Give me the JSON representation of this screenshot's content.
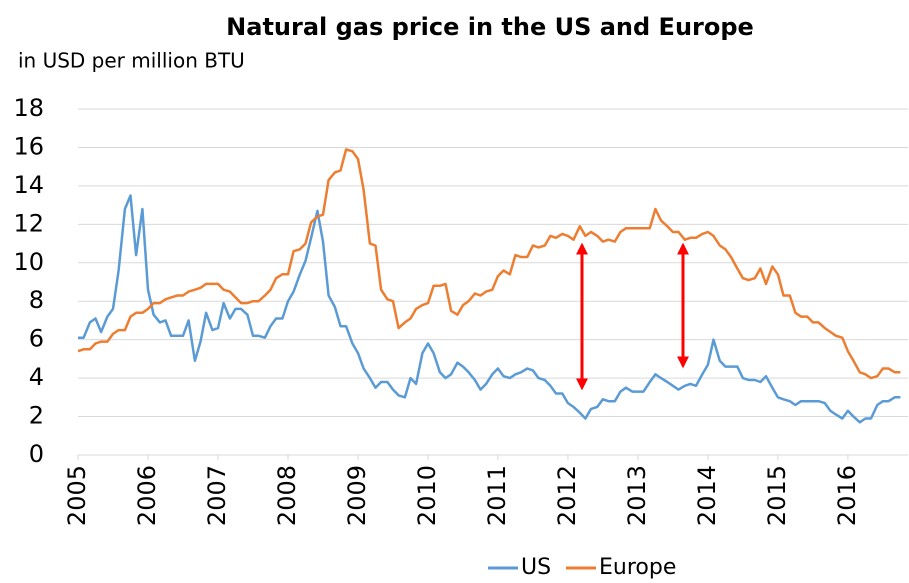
{
  "chart_data": {
    "type": "line",
    "title": "Natural gas price in the US and Europe",
    "subtitle": "in USD per million BTU",
    "x": [
      2005,
      2005.08,
      2005.17,
      2005.25,
      2005.33,
      2005.42,
      2005.5,
      2005.58,
      2005.67,
      2005.75,
      2005.83,
      2005.92,
      2006,
      2006.08,
      2006.17,
      2006.25,
      2006.33,
      2006.42,
      2006.5,
      2006.58,
      2006.67,
      2006.75,
      2006.83,
      2006.92,
      2007,
      2007.08,
      2007.17,
      2007.25,
      2007.33,
      2007.42,
      2007.5,
      2007.58,
      2007.67,
      2007.75,
      2007.83,
      2007.92,
      2008,
      2008.08,
      2008.17,
      2008.25,
      2008.33,
      2008.42,
      2008.5,
      2008.58,
      2008.67,
      2008.75,
      2008.83,
      2008.92,
      2009,
      2009.08,
      2009.17,
      2009.25,
      2009.33,
      2009.42,
      2009.5,
      2009.58,
      2009.67,
      2009.75,
      2009.83,
      2009.92,
      2010,
      2010.08,
      2010.17,
      2010.25,
      2010.33,
      2010.42,
      2010.5,
      2010.58,
      2010.67,
      2010.75,
      2010.83,
      2010.92,
      2011,
      2011.08,
      2011.17,
      2011.25,
      2011.33,
      2011.42,
      2011.5,
      2011.58,
      2011.67,
      2011.75,
      2011.83,
      2011.92,
      2012,
      2012.08,
      2012.17,
      2012.25,
      2012.33,
      2012.42,
      2012.5,
      2012.58,
      2012.67,
      2012.75,
      2012.83,
      2012.92,
      2013,
      2013.08,
      2013.17,
      2013.25,
      2013.33,
      2013.42,
      2013.5,
      2013.58,
      2013.67,
      2013.75,
      2013.83,
      2013.92,
      2014,
      2014.08,
      2014.17,
      2014.25,
      2014.33,
      2014.42,
      2014.5,
      2014.58,
      2014.67,
      2014.75,
      2014.83,
      2014.92,
      2015,
      2015.08,
      2015.17,
      2015.25,
      2015.33,
      2015.42,
      2015.5,
      2015.58,
      2015.67,
      2015.75,
      2015.83,
      2015.92,
      2016,
      2016.08,
      2016.17,
      2016.25,
      2016.33,
      2016.42,
      2016.5,
      2016.58,
      2016.67,
      2016.75
    ],
    "series": [
      {
        "name": "US",
        "color": "#5b9bd5",
        "values": [
          6.1,
          6.1,
          6.9,
          7.1,
          6.4,
          7.2,
          7.6,
          9.6,
          12.8,
          13.5,
          10.4,
          12.8,
          8.6,
          7.3,
          6.9,
          7.0,
          6.2,
          6.2,
          6.2,
          7.0,
          4.9,
          5.9,
          7.4,
          6.5,
          6.6,
          7.9,
          7.1,
          7.6,
          7.6,
          7.3,
          6.2,
          6.2,
          6.1,
          6.7,
          7.1,
          7.1,
          8.0,
          8.5,
          9.4,
          10.1,
          11.3,
          12.7,
          11.1,
          8.3,
          7.7,
          6.7,
          6.7,
          5.8,
          5.3,
          4.5,
          4.0,
          3.5,
          3.8,
          3.8,
          3.4,
          3.1,
          3.0,
          4.0,
          3.7,
          5.3,
          5.8,
          5.3,
          4.3,
          4.0,
          4.2,
          4.8,
          4.6,
          4.3,
          3.9,
          3.4,
          3.7,
          4.2,
          4.5,
          4.1,
          4.0,
          4.2,
          4.3,
          4.5,
          4.4,
          4.0,
          3.9,
          3.6,
          3.2,
          3.2,
          2.7,
          2.5,
          2.2,
          1.9,
          2.4,
          2.5,
          2.9,
          2.8,
          2.8,
          3.3,
          3.5,
          3.3,
          3.3,
          3.3,
          3.8,
          4.2,
          4.0,
          3.8,
          3.6,
          3.4,
          3.6,
          3.7,
          3.6,
          4.2,
          4.7,
          6.0,
          4.9,
          4.6,
          4.6,
          4.6,
          4.0,
          3.9,
          3.9,
          3.8,
          4.1,
          3.5,
          3.0,
          2.9,
          2.8,
          2.6,
          2.8,
          2.8,
          2.8,
          2.8,
          2.7,
          2.3,
          2.1,
          1.9,
          2.3,
          2.0,
          1.7,
          1.9,
          1.9,
          2.6,
          2.8,
          2.8,
          3.0,
          3.0
        ]
      },
      {
        "name": "Europe",
        "color": "#ed7d31",
        "values": [
          5.4,
          5.5,
          5.5,
          5.8,
          5.9,
          5.9,
          6.3,
          6.5,
          6.5,
          7.2,
          7.4,
          7.4,
          7.6,
          7.9,
          7.9,
          8.1,
          8.2,
          8.3,
          8.3,
          8.5,
          8.6,
          8.7,
          8.9,
          8.9,
          8.9,
          8.6,
          8.5,
          8.2,
          7.9,
          7.9,
          8.0,
          8.0,
          8.3,
          8.6,
          9.2,
          9.4,
          9.4,
          10.6,
          10.7,
          11.0,
          12.1,
          12.4,
          12.5,
          14.3,
          14.7,
          14.8,
          15.9,
          15.8,
          15.4,
          13.8,
          11.0,
          10.9,
          8.6,
          8.1,
          8.0,
          6.6,
          6.9,
          7.1,
          7.6,
          7.8,
          7.9,
          8.8,
          8.8,
          8.9,
          7.5,
          7.3,
          7.8,
          8.0,
          8.4,
          8.3,
          8.5,
          8.6,
          9.3,
          9.6,
          9.4,
          10.4,
          10.3,
          10.3,
          10.9,
          10.8,
          10.9,
          11.4,
          11.3,
          11.5,
          11.4,
          11.2,
          11.9,
          11.4,
          11.6,
          11.4,
          11.1,
          11.2,
          11.1,
          11.6,
          11.8,
          11.8,
          11.8,
          11.8,
          11.8,
          12.8,
          12.2,
          11.9,
          11.6,
          11.6,
          11.2,
          11.3,
          11.3,
          11.5,
          11.6,
          11.4,
          10.9,
          10.7,
          10.3,
          9.7,
          9.2,
          9.1,
          9.2,
          9.7,
          8.9,
          9.8,
          9.4,
          8.3,
          8.3,
          7.4,
          7.2,
          7.2,
          6.9,
          6.9,
          6.6,
          6.4,
          6.2,
          6.1,
          5.4,
          4.9,
          4.3,
          4.2,
          4.0,
          4.1,
          4.5,
          4.5,
          4.3,
          4.3
        ]
      }
    ],
    "xlim": [
      2005,
      2016.83
    ],
    "xticks": [
      2005,
      2006,
      2007,
      2008,
      2009,
      2010,
      2011,
      2012,
      2013,
      2014,
      2015,
      2016
    ],
    "ylim": [
      0,
      18
    ],
    "yticks": [
      0,
      2,
      4,
      6,
      8,
      10,
      12,
      14,
      16,
      18
    ],
    "grid": true,
    "legend": "bottom"
  }
}
